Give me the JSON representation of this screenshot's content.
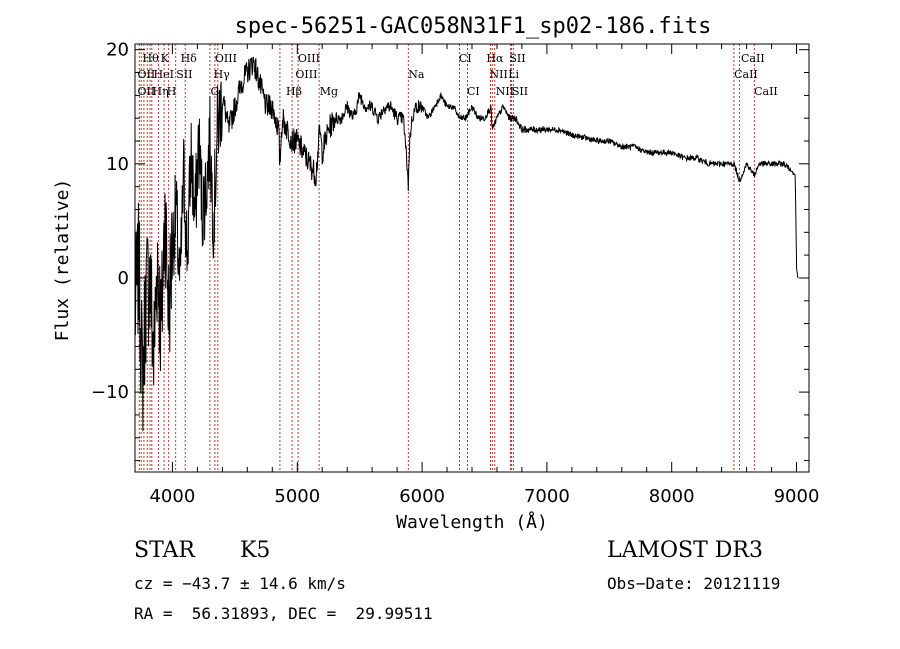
{
  "chart_data": {
    "type": "line",
    "title": "spec-56251-GAC058N31F1_sp02-186.fits",
    "xlabel": "Wavelength (Å)",
    "ylabel": "Flux (relative)",
    "xlim": [
      3700,
      9100
    ],
    "ylim": [
      -17,
      20.5
    ],
    "xticks": [
      4000,
      5000,
      6000,
      7000,
      8000,
      9000
    ],
    "xtick_labels": [
      "4000",
      "5000",
      "6000",
      "7000",
      "8000",
      "9000"
    ],
    "yticks": [
      -10,
      0,
      10,
      20
    ],
    "ytick_labels": [
      "−10",
      "0",
      "10",
      "20"
    ],
    "grid": false,
    "legend": "none",
    "series": [
      {
        "name": "spectrum",
        "x": [
          3700,
          3730,
          3760,
          3790,
          3820,
          3850,
          3880,
          3910,
          3940,
          3970,
          4000,
          4030,
          4060,
          4090,
          4120,
          4150,
          4180,
          4210,
          4240,
          4270,
          4300,
          4330,
          4360,
          4400,
          4450,
          4500,
          4550,
          4600,
          4650,
          4700,
          4750,
          4800,
          4850,
          4860,
          4880,
          4920,
          4960,
          5000,
          5050,
          5100,
          5150,
          5180,
          5200,
          5250,
          5300,
          5350,
          5400,
          5450,
          5500,
          5550,
          5600,
          5650,
          5700,
          5750,
          5800,
          5850,
          5880,
          5890,
          5900,
          5920,
          5950,
          6000,
          6050,
          6100,
          6150,
          6200,
          6250,
          6300,
          6350,
          6400,
          6450,
          6500,
          6550,
          6563,
          6600,
          6650,
          6700,
          6750,
          6800,
          6850,
          6900,
          6950,
          7000,
          7100,
          7200,
          7300,
          7400,
          7500,
          7600,
          7700,
          7800,
          7900,
          8000,
          8100,
          8200,
          8300,
          8400,
          8500,
          8542,
          8600,
          8662,
          8700,
          8800,
          8900,
          8950,
          8990,
          9000,
          9010
        ],
        "y": [
          -3,
          1,
          -9,
          -1,
          0,
          -7,
          2,
          -5,
          6,
          -3,
          3,
          6,
          -1,
          9,
          2,
          11,
          5,
          12,
          6,
          8,
          12,
          5,
          13,
          16,
          13,
          15,
          17,
          18,
          19,
          17,
          15,
          15,
          13,
          10,
          14,
          13,
          12,
          12,
          11,
          10,
          9,
          13,
          11,
          13,
          14,
          14,
          15,
          14,
          16,
          15,
          15,
          14,
          15,
          15,
          14,
          14,
          10,
          8,
          12,
          14,
          15,
          15,
          14,
          15,
          16,
          15,
          15,
          14,
          14,
          15,
          14,
          14,
          15,
          13,
          14,
          15,
          14,
          14,
          13,
          13,
          13,
          13,
          13,
          13,
          12.5,
          12.3,
          12,
          12,
          11.5,
          11.5,
          11,
          11,
          11,
          10.5,
          10.5,
          10,
          10,
          10,
          8.5,
          10,
          9,
          10,
          10,
          10,
          9.5,
          9,
          1,
          0
        ]
      }
    ],
    "lines": {
      "wavelengths": [
        3734,
        3750,
        3771,
        3798,
        3820,
        3835,
        3889,
        3933,
        3970,
        4026,
        4102,
        4300,
        4340,
        4363,
        4861,
        4959,
        5007,
        5175,
        5890,
        6300,
        6364,
        6548,
        6563,
        6583,
        6708,
        6717,
        6731,
        8498,
        8542,
        8662
      ],
      "labels": [
        {
          "text": "Hθ",
          "row": 0,
          "w": 3760
        },
        {
          "text": "K",
          "row": 0,
          "w": 3905
        },
        {
          "text": "Hδ",
          "row": 0,
          "w": 4065
        },
        {
          "text": "OIII",
          "row": 0,
          "w": 4340
        },
        {
          "text": "OIII",
          "row": 0,
          "w": 5005
        },
        {
          "text": "CI",
          "row": 0,
          "w": 6295
        },
        {
          "text": "Hα",
          "row": 0,
          "w": 6515
        },
        {
          "text": "SII",
          "row": 0,
          "w": 6700
        },
        {
          "text": "CaII",
          "row": 0,
          "w": 8555
        },
        {
          "text": "OII",
          "row": 1,
          "w": 3720
        },
        {
          "text": "HeI",
          "row": 1,
          "w": 3848
        },
        {
          "text": "SII",
          "row": 1,
          "w": 4030
        },
        {
          "text": "Hγ",
          "row": 1,
          "w": 4330
        },
        {
          "text": "OIII",
          "row": 1,
          "w": 4985
        },
        {
          "text": "Na",
          "row": 1,
          "w": 5890
        },
        {
          "text": "NII",
          "row": 1,
          "w": 6540
        },
        {
          "text": "Li",
          "row": 1,
          "w": 6690
        },
        {
          "text": "CaII",
          "row": 1,
          "w": 8500
        },
        {
          "text": "OII",
          "row": 2,
          "w": 3720
        },
        {
          "text": "Hη",
          "row": 2,
          "w": 3840
        },
        {
          "text": "H",
          "row": 2,
          "w": 3955
        },
        {
          "text": "G",
          "row": 2,
          "w": 4305
        },
        {
          "text": "Hβ",
          "row": 2,
          "w": 4910
        },
        {
          "text": "Mg",
          "row": 2,
          "w": 5180
        },
        {
          "text": "CI",
          "row": 2,
          "w": 6360
        },
        {
          "text": "NII",
          "row": 2,
          "w": 6590
        },
        {
          "text": "SII",
          "row": 2,
          "w": 6720
        },
        {
          "text": "CaII",
          "row": 2,
          "w": 8660
        }
      ]
    }
  },
  "info": {
    "class_label": "STAR",
    "subclass": "K5",
    "survey": "LAMOST DR3",
    "cz": "cz = −43.7 ± 14.6 km/s",
    "obs_date": "Obs−Date: 20121119",
    "coords": "RA =  56.31893, DEC =  29.99511"
  }
}
